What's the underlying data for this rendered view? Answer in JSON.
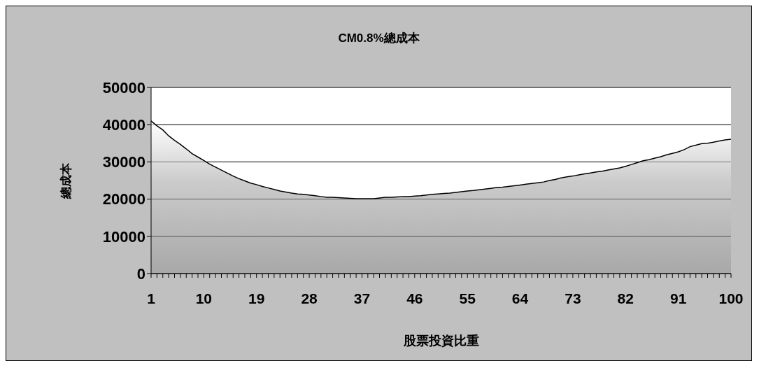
{
  "chart_data": {
    "type": "area",
    "title": "CM0.8%總成本",
    "xlabel": "股票投資比重",
    "ylabel": "總成本",
    "categories": [
      "1",
      null,
      null,
      null,
      null,
      null,
      null,
      null,
      null,
      "10",
      null,
      null,
      null,
      null,
      null,
      null,
      null,
      null,
      "19",
      null,
      null,
      null,
      null,
      null,
      null,
      null,
      null,
      "28",
      null,
      null,
      null,
      null,
      null,
      null,
      null,
      null,
      "37",
      null,
      null,
      null,
      null,
      null,
      null,
      null,
      null,
      "46",
      null,
      null,
      null,
      null,
      null,
      null,
      null,
      null,
      "55",
      null,
      null,
      null,
      null,
      null,
      null,
      null,
      null,
      "64",
      null,
      null,
      null,
      null,
      null,
      null,
      null,
      null,
      "73",
      null,
      null,
      null,
      null,
      null,
      null,
      null,
      null,
      "82",
      null,
      null,
      null,
      null,
      null,
      null,
      null,
      null,
      "91",
      null,
      null,
      null,
      null,
      null,
      null,
      null,
      null,
      "100"
    ],
    "values": [
      41000,
      39700,
      38600,
      37000,
      35800,
      34700,
      33500,
      32200,
      31300,
      30400,
      29400,
      28600,
      27800,
      27000,
      26200,
      25500,
      24900,
      24300,
      23900,
      23400,
      23000,
      22600,
      22200,
      21900,
      21600,
      21400,
      21300,
      21100,
      20900,
      20700,
      20500,
      20500,
      20400,
      20300,
      20200,
      20100,
      20100,
      20100,
      20100,
      20300,
      20500,
      20500,
      20600,
      20700,
      20700,
      20800,
      20900,
      21100,
      21300,
      21400,
      21500,
      21600,
      21800,
      22000,
      22200,
      22300,
      22500,
      22700,
      22900,
      23100,
      23200,
      23400,
      23600,
      23800,
      24000,
      24200,
      24400,
      24600,
      25000,
      25300,
      25700,
      26000,
      26200,
      26500,
      26800,
      27000,
      27300,
      27500,
      27800,
      28100,
      28400,
      28800,
      29300,
      29800,
      30300,
      30600,
      31000,
      31400,
      31900,
      32300,
      32700,
      33300,
      34100,
      34500,
      34900,
      35000,
      35300,
      35600,
      35900,
      36100
    ],
    "color": "#a8a8a8",
    "ylim": [
      0,
      50000
    ],
    "yticks": [
      0,
      10000,
      20000,
      30000,
      40000,
      50000
    ],
    "grid": "y"
  }
}
